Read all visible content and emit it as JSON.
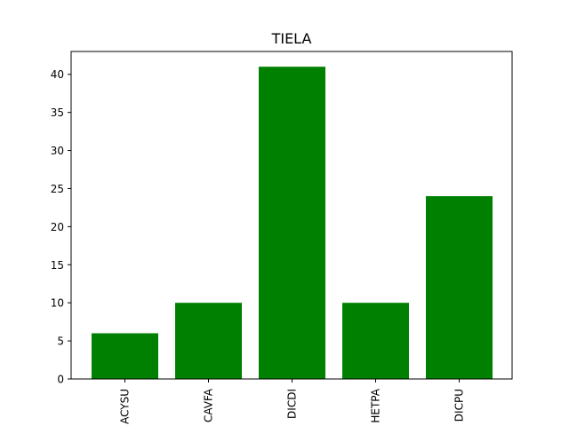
{
  "chart_data": {
    "type": "bar",
    "title": "TIELA",
    "categories": [
      "ACYSU",
      "CAVFA",
      "DICDI",
      "HETPA",
      "DICPU"
    ],
    "values": [
      6,
      10,
      41,
      10,
      24
    ],
    "ylim": [
      0,
      43
    ],
    "yticks": [
      0,
      5,
      10,
      15,
      20,
      25,
      30,
      35,
      40
    ],
    "bar_color": "#008000",
    "xlabel": "",
    "ylabel": "",
    "grid": false
  }
}
